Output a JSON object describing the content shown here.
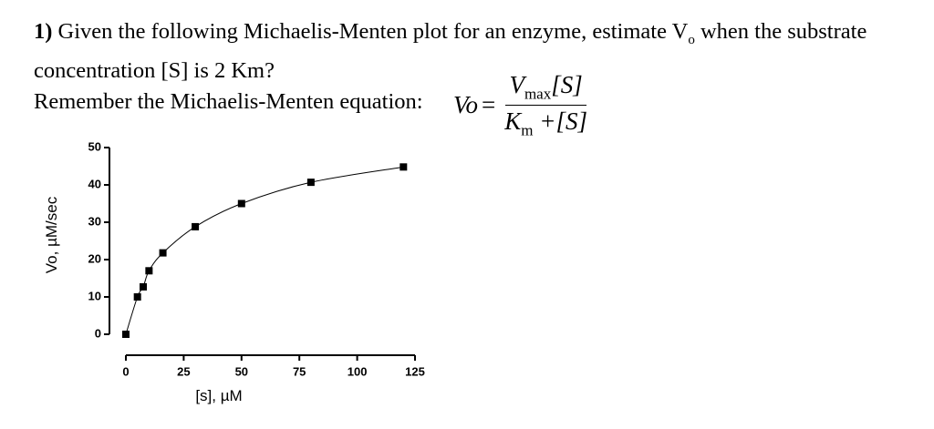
{
  "question": {
    "number": "1)",
    "text_before": "Given the following Michaelis-Menten plot for an enzyme, estimate V",
    "subscript": "o",
    "text_after": " when the substrate concentration [S] is 2 Km?",
    "reminder": "Remember the Michaelis-Menten equation:"
  },
  "equation": {
    "lhs": "Vo",
    "equals": "=",
    "num_v": "V",
    "num_sub": "max",
    "num_s": "[S]",
    "den_k": "K",
    "den_sub": "m",
    "den_rest": " +[S]"
  },
  "chart_data": {
    "type": "scatter",
    "x_label": "[s], µM",
    "y_label": "Vo, µM/sec",
    "x": [
      0,
      5,
      7.5,
      10,
      16,
      30,
      50,
      80,
      120
    ],
    "values": [
      0,
      10,
      12.7,
      17,
      21.8,
      28.8,
      35,
      40.7,
      44.8
    ],
    "color": "#000000",
    "fit_line": true,
    "xlim": [
      0,
      125
    ],
    "xticks": [
      0,
      25,
      50,
      75,
      100,
      125
    ],
    "ylim": [
      0,
      50
    ],
    "yticks": [
      0,
      10,
      20,
      30,
      40,
      50
    ]
  }
}
